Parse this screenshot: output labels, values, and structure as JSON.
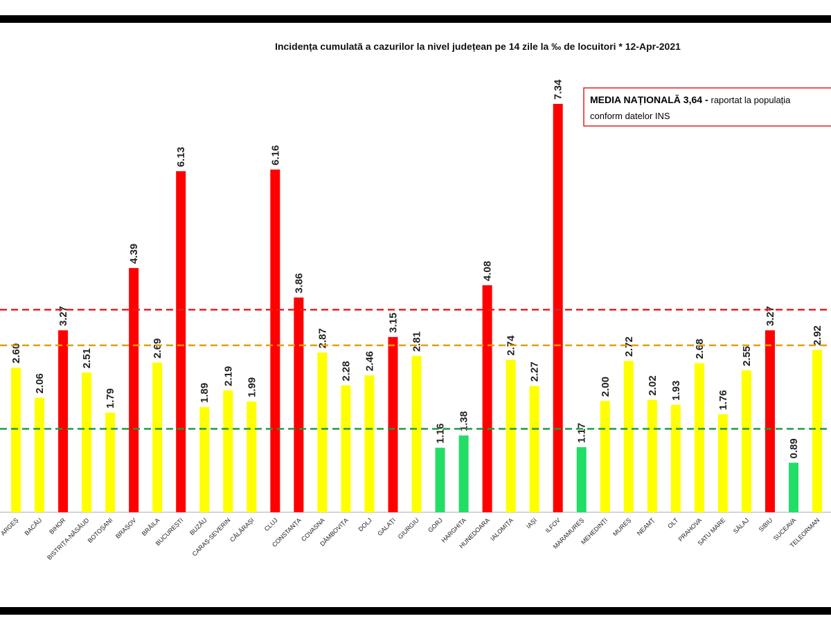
{
  "chart_data": {
    "type": "bar",
    "title": "Incidența cumulată a cazurilor la nivel județean pe 14 zile la ‰ de locuitori *   12-Apr-2021",
    "note_line1": "MEDIA NAȚIONALĂ  3,64 -",
    "note_line1b": "raportat la populația",
    "note_line2": "conform datelor INS",
    "categories": [
      "ARGEȘ",
      "BACĂU",
      "BIHOR",
      "BISTRIȚA-NĂSĂUD",
      "BOTOȘANI",
      "BRAȘOV",
      "BRĂILA",
      "BUCUREȘTI",
      "BUZĂU",
      "CARAȘ-SEVERIN",
      "CĂLĂRAȘI",
      "CLUJ",
      "CONSTANȚA",
      "COVASNA",
      "DÂMBOVIȚA",
      "DOLJ",
      "GALAȚI",
      "GIURGIU",
      "GORJ",
      "HARGHITA",
      "HUNEDOARA",
      "IALOMIȚA",
      "IAȘI",
      "ILFOV",
      "MARAMUREȘ",
      "MEHEDINȚI",
      "MUREȘ",
      "NEAMȚ",
      "OLT",
      "PRAHOVA",
      "SATU MARE",
      "SĂLAJ",
      "SIBIU",
      "SUCEAVA",
      "TELEORMAN"
    ],
    "values": [
      2.6,
      2.06,
      3.27,
      2.51,
      1.79,
      4.39,
      2.69,
      6.13,
      1.89,
      2.19,
      1.99,
      6.16,
      3.86,
      2.87,
      2.28,
      2.46,
      3.15,
      2.81,
      1.16,
      1.38,
      4.08,
      2.74,
      2.27,
      7.34,
      1.17,
      2,
      2.72,
      2.02,
      1.93,
      2.68,
      1.76,
      2.55,
      3.27,
      0.89,
      2.92
    ],
    "value_labels": [
      "2.60",
      "2.06",
      "3.27",
      "2.51",
      "1.79",
      "4.39",
      "2.69",
      "6.13",
      "1.89",
      "2.19",
      "1.99",
      "6.16",
      "3.86",
      "2.87",
      "2.28",
      "2.46",
      "3.15",
      "2.81",
      "1.16",
      "1.38",
      "4.08",
      "2.74",
      "2.27",
      "7.34",
      "1.17",
      "2.00",
      "2.72",
      "2.02",
      "1.93",
      "2.68",
      "1.76",
      "2.55",
      "3.27",
      "0.89",
      "2.92"
    ],
    "colors": [
      "#ffff00",
      "#ffff00",
      "#ff0000",
      "#ffff00",
      "#ffff00",
      "#ff0000",
      "#ffff00",
      "#ff0000",
      "#ffff00",
      "#ffff00",
      "#ffff00",
      "#ff0000",
      "#ff0000",
      "#ffff00",
      "#ffff00",
      "#ffff00",
      "#ff0000",
      "#ffff00",
      "#22dd66",
      "#22dd66",
      "#ff0000",
      "#ffff00",
      "#ffff00",
      "#ff0000",
      "#22dd66",
      "#ffff00",
      "#ffff00",
      "#ffff00",
      "#ffff00",
      "#ffff00",
      "#ffff00",
      "#ffff00",
      "#ff0000",
      "#22dd66",
      "#ffff00"
    ],
    "reference_lines": [
      {
        "value": 3.64,
        "color": "#e02020"
      },
      {
        "value": 3,
        "color": "#e0a000"
      },
      {
        "value": 1.5,
        "color": "#229944"
      }
    ],
    "ylim": [
      0,
      8
    ]
  }
}
